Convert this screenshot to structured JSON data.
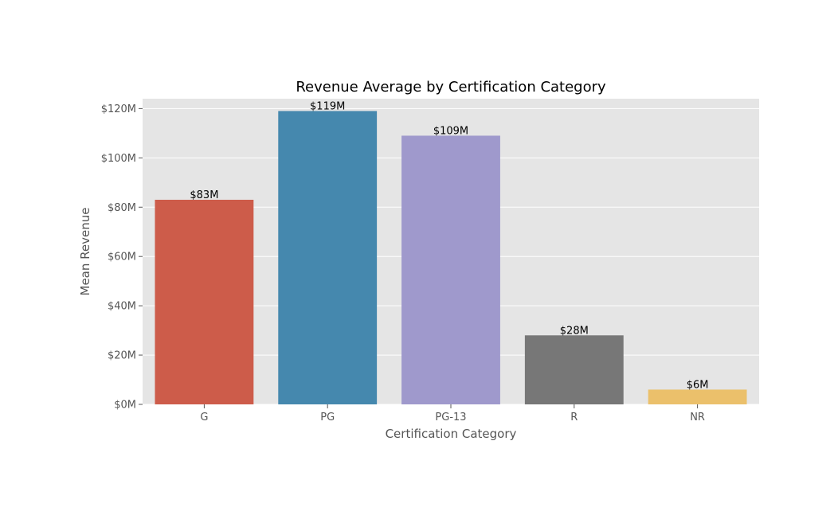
{
  "chart_data": {
    "type": "bar",
    "title": "Revenue Average by Certification Category",
    "xlabel": "Certification Category",
    "ylabel": "Mean Revenue",
    "categories": [
      "G",
      "PG",
      "PG-13",
      "R",
      "NR"
    ],
    "values": [
      83,
      119,
      109,
      28,
      6
    ],
    "value_unit": "$M",
    "data_labels": [
      "$83M",
      "$119M",
      "$109M",
      "$28M",
      "$6M"
    ],
    "colors": [
      "#cd5c4a",
      "#4588ae",
      "#9f99cc",
      "#777777",
      "#ebc06b"
    ],
    "ylim": [
      0,
      124
    ],
    "yticks": [
      0,
      20,
      40,
      60,
      80,
      100,
      120
    ],
    "ytick_labels": [
      "$0M",
      "$20M",
      "$40M",
      "$60M",
      "$80M",
      "$100M",
      "$120M"
    ],
    "grid": true,
    "background": "#e5e5e5",
    "grid_color": "#ffffff"
  }
}
